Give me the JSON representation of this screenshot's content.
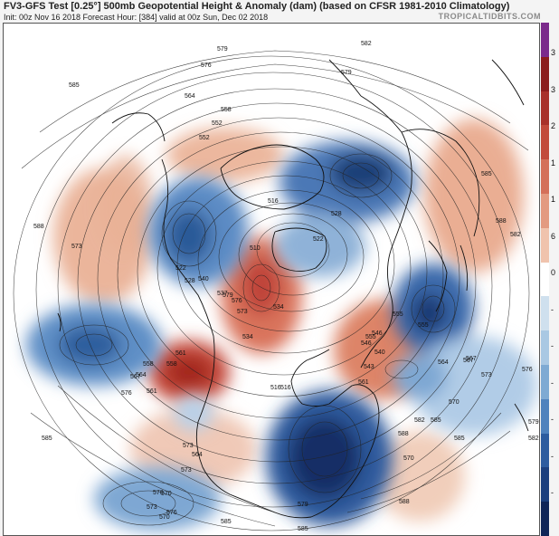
{
  "header": {
    "title": "FV3-GFS Test [0.25°] 500mb Geopotential Height & Anomaly (dam) (based on CFSR 1981-2010 Climatology)",
    "subtitle": "Init: 00z Nov 16 2018   Forecast Hour: [384]   valid at 00z Sun, Dec 02 2018",
    "brand": "TROPICALTIDBITS.COM"
  },
  "colorbar": {
    "labels": [
      "3",
      "3",
      "2",
      "1",
      "1",
      "6",
      "0",
      "-",
      "-",
      "-",
      "-",
      "-",
      "-"
    ],
    "colors": [
      "#7b2a8c",
      "#8c1c1c",
      "#a8312a",
      "#c24a3b",
      "#d4705a",
      "#e39a80",
      "#f0c3ad",
      "#ffffff",
      "#cfe0ee",
      "#a9c8e3",
      "#7eaad3",
      "#4f82bd",
      "#2d5c9f",
      "#1b3f7e",
      "#0f2558"
    ]
  },
  "map": {
    "contour_labels": [
      "585",
      "579",
      "576",
      "588",
      "552",
      "564",
      "558",
      "582",
      "579",
      "585",
      "588",
      "573",
      "534",
      "516",
      "579",
      "564",
      "558",
      "555",
      "546",
      "561",
      "570",
      "567",
      "573",
      "576",
      "582",
      "585",
      "588",
      "576",
      "570",
      "573",
      "582",
      "579",
      "585",
      "570",
      "576",
      "573",
      "567",
      "561",
      "558",
      "552",
      "546",
      "540",
      "537",
      "534",
      "528",
      "522",
      "516",
      "510",
      "516",
      "522",
      "528",
      "540",
      "543",
      "555",
      "564",
      "567",
      "570",
      "582",
      "585",
      "588",
      "585",
      "579",
      "576",
      "573",
      "570",
      "564",
      "561",
      "555",
      "573",
      "585"
    ]
  }
}
